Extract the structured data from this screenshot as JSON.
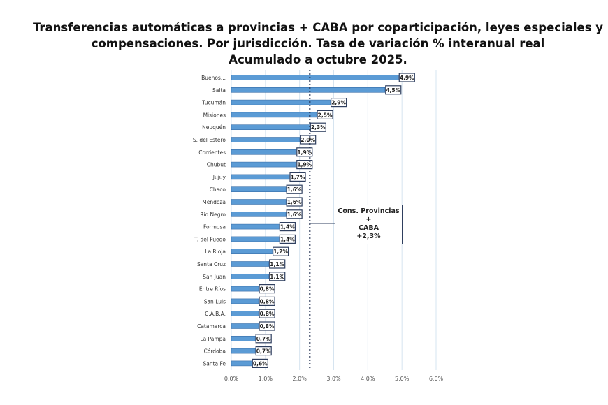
{
  "chart_data": {
    "type": "bar",
    "orientation": "horizontal",
    "title": [
      "Transferencias automáticas a provincias + CABA por coparticipación, leyes especiales y",
      "compensaciones. Por jurisdicción. Tasa de variación % interanual real",
      "Acumulado a octubre 2025."
    ],
    "categories": [
      "Buenos...",
      "Salta",
      "Tucumán",
      "Misiones",
      "Neuquén",
      "S. del Estero",
      "Corrientes",
      "Chubut",
      "Jujuy",
      "Chaco",
      "Mendoza",
      "Río Negro",
      "Formosa",
      "T. del Fuego",
      "La Rioja",
      "Santa Cruz",
      "San Juan",
      "Entre Ríos",
      "San Luis",
      "C.A.B.A.",
      "Catamarca",
      "La Pampa",
      "Córdoba",
      "Santa Fe"
    ],
    "values": [
      4.9,
      4.5,
      2.9,
      2.5,
      2.3,
      2.0,
      1.9,
      1.9,
      1.7,
      1.6,
      1.6,
      1.6,
      1.4,
      1.4,
      1.2,
      1.1,
      1.1,
      0.8,
      0.8,
      0.8,
      0.8,
      0.7,
      0.7,
      0.6
    ],
    "data_labels": [
      "4,9%",
      "4,5%",
      "2,9%",
      "2,5%",
      "2,3%",
      "2,0%",
      "1,9%",
      "1,9%",
      "1,7%",
      "1,6%",
      "1,6%",
      "1,6%",
      "1,4%",
      "1,4%",
      "1,2%",
      "1,1%",
      "1,1%",
      "0,8%",
      "0,8%",
      "0,8%",
      "0,8%",
      "0,7%",
      "0,7%",
      "0,6%"
    ],
    "xlim": [
      0,
      6
    ],
    "xticks": [
      0,
      1,
      2,
      3,
      4,
      5,
      6
    ],
    "xtick_labels": [
      "0,0%",
      "1,0%",
      "2,0%",
      "3,0%",
      "4,0%",
      "5,0%",
      "6,0%"
    ],
    "grid": "vertical",
    "bar_color": "#5b9bd5",
    "reference_line": {
      "value": 2.3,
      "style": "dotted",
      "color": "#1f2f4f"
    },
    "annotation": [
      "Cons. Provincias +",
      "CABA",
      "+2,3%"
    ]
  }
}
